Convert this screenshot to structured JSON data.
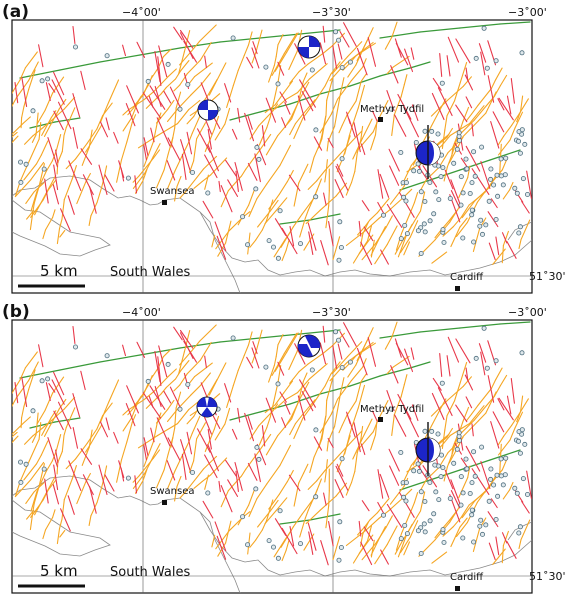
{
  "panels": [
    {
      "label": "(a)"
    },
    {
      "label": "(b)"
    }
  ],
  "grid": {
    "lon_labels": [
      "−4˚00'",
      "−3˚30'",
      "−3˚00'"
    ],
    "lat_label": "51˚30'"
  },
  "scale_bar": {
    "label": "5 km"
  },
  "region_label": "South Wales",
  "cities": [
    {
      "name": "Swansea"
    },
    {
      "name": "Methyr Tydfil"
    },
    {
      "name": "Cardiff"
    }
  ],
  "colors": {
    "fault_red": "#e8384a",
    "fault_orange": "#f5a623",
    "fault_green": "#3a9a3a",
    "mechanism_blue": "#1c25c8",
    "coast": "#8a8a8a",
    "event_circle": "#4f6f7f"
  },
  "icons": [
    "focal-mechanism-icon",
    "city-marker-icon",
    "earthquake-circle-icon"
  ]
}
